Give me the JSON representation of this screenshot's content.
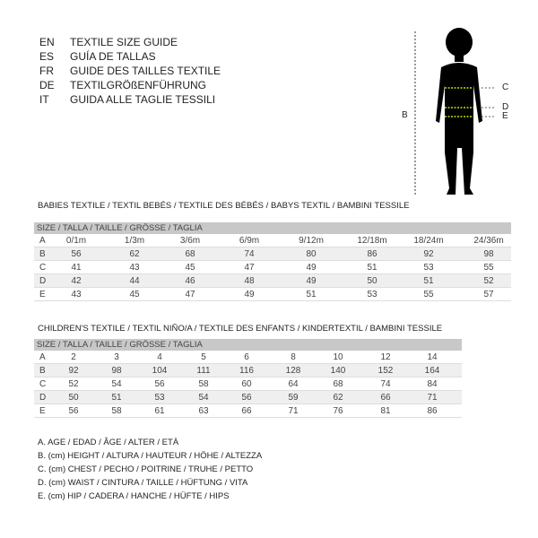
{
  "languages": [
    {
      "code": "EN",
      "title": "TEXTILE SIZE GUIDE"
    },
    {
      "code": "ES",
      "title": "GUÍA DE TALLAS"
    },
    {
      "code": "FR",
      "title": "GUIDE DES TAILLES TEXTILE"
    },
    {
      "code": "DE",
      "title": "TEXTILGRÖßENFÜHRUNG"
    },
    {
      "code": "IT",
      "title": "GUIDA ALLE TAGLIE TESSILI"
    }
  ],
  "figure": {
    "labels": {
      "B": "B",
      "C": "C",
      "D": "D",
      "E": "E"
    },
    "measure_color": "#c8e000"
  },
  "babies": {
    "title": "BABIES TEXTILE / TEXTIL BEBÉS / TEXTILE DES BÉBÉS / BABYS TEXTIL  / BAMBINI TESSILE",
    "header": "SIZE / TALLA / TAILLE / GRÖSSE / TAGLIA",
    "rows": [
      {
        "label": "A",
        "values": [
          "0/1m",
          "1/3m",
          "3/6m",
          "6/9m",
          "9/12m",
          "12/18m",
          "18/24m",
          "24/36m"
        ]
      },
      {
        "label": "B",
        "values": [
          "56",
          "62",
          "68",
          "74",
          "80",
          "86",
          "92",
          "98"
        ]
      },
      {
        "label": "C",
        "values": [
          "41",
          "43",
          "45",
          "47",
          "49",
          "51",
          "53",
          "55"
        ]
      },
      {
        "label": "D",
        "values": [
          "42",
          "44",
          "46",
          "48",
          "49",
          "50",
          "51",
          "52"
        ]
      },
      {
        "label": "E",
        "values": [
          "43",
          "45",
          "47",
          "49",
          "51",
          "53",
          "55",
          "57"
        ]
      }
    ]
  },
  "children": {
    "title": "CHILDREN'S TEXTILE / TEXTIL NIÑO/A / TEXTILE DES ENFANTS / KINDERTEXTIL / BAMBINI TESSILE",
    "header": "SIZE / TALLA / TAILLE / GRÖSSE / TAGLIA",
    "rows": [
      {
        "label": "A",
        "values": [
          "2",
          "3",
          "4",
          "5",
          "6",
          "8",
          "10",
          "12",
          "14"
        ]
      },
      {
        "label": "B",
        "values": [
          "92",
          "98",
          "104",
          "111",
          "116",
          "128",
          "140",
          "152",
          "164"
        ]
      },
      {
        "label": "C",
        "values": [
          "52",
          "54",
          "56",
          "58",
          "60",
          "64",
          "68",
          "74",
          "84"
        ]
      },
      {
        "label": "D",
        "values": [
          "50",
          "51",
          "53",
          "54",
          "56",
          "59",
          "62",
          "66",
          "71"
        ]
      },
      {
        "label": "E",
        "values": [
          "56",
          "58",
          "61",
          "63",
          "66",
          "71",
          "76",
          "81",
          "86"
        ]
      }
    ]
  },
  "legend": [
    "A. AGE / EDAD / ÂGE / ALTER / ETÀ",
    "B. (cm) HEIGHT / ALTURA / HAUTEUR / HÖHE / ALTEZZA",
    "C. (cm) CHEST / PECHO / POITRINE / TRUHE / PETTO",
    "D. (cm) WAIST / CINTURA / TAILLE / HÜFTUNG / VITA",
    "E. (cm) HIP / CADERA / HANCHE / HÜFTE / HIPS"
  ]
}
